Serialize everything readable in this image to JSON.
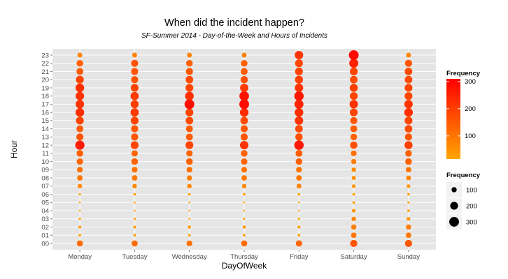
{
  "chart_data": {
    "type": "scatter",
    "title": "When did the incident happen?",
    "subtitle": "SF-Summer 2014 - Day-of-the-Week and Hours of Incidents",
    "xlabel": "DayOfWeek",
    "ylabel": "Hour",
    "categories": [
      "Monday",
      "Tuesday",
      "Wednesday",
      "Thursday",
      "Friday",
      "Saturday",
      "Sunday"
    ],
    "hours": [
      "00",
      "01",
      "02",
      "03",
      "04",
      "05",
      "06",
      "07",
      "08",
      "09",
      "10",
      "11",
      "12",
      "13",
      "14",
      "15",
      "16",
      "17",
      "18",
      "19",
      "20",
      "21",
      "22",
      "23"
    ],
    "size_range": [
      30,
      320
    ],
    "color_low": "#ffa500",
    "color_high": "#ff0000",
    "background": "#e5e5e5",
    "grid": true,
    "series": [
      {
        "category": "Monday",
        "values": [
          130,
          40,
          45,
          35,
          30,
          30,
          35,
          80,
          110,
          120,
          140,
          150,
          270,
          170,
          160,
          200,
          240,
          230,
          230,
          240,
          200,
          160,
          150,
          90
        ]
      },
      {
        "category": "Tuesday",
        "values": [
          130,
          40,
          45,
          35,
          30,
          30,
          40,
          80,
          110,
          120,
          150,
          140,
          200,
          170,
          170,
          200,
          220,
          210,
          220,
          200,
          170,
          170,
          170,
          90
        ]
      },
      {
        "category": "Wednesday",
        "values": [
          120,
          40,
          50,
          30,
          30,
          30,
          40,
          80,
          100,
          120,
          150,
          140,
          200,
          160,
          160,
          190,
          200,
          300,
          240,
          200,
          190,
          170,
          150,
          90
        ]
      },
      {
        "category": "Thursday",
        "values": [
          130,
          40,
          50,
          35,
          30,
          30,
          40,
          80,
          110,
          120,
          140,
          150,
          230,
          170,
          170,
          190,
          240,
          300,
          290,
          220,
          180,
          160,
          150,
          90
        ]
      },
      {
        "category": "Friday",
        "values": [
          140,
          40,
          45,
          35,
          30,
          30,
          40,
          90,
          110,
          120,
          150,
          160,
          280,
          180,
          190,
          230,
          240,
          260,
          280,
          230,
          210,
          200,
          200,
          230
        ]
      },
      {
        "category": "Saturday",
        "values": [
          170,
          110,
          100,
          80,
          60,
          40,
          40,
          60,
          70,
          80,
          100,
          120,
          180,
          150,
          160,
          170,
          200,
          230,
          200,
          210,
          190,
          200,
          260,
          300
        ]
      },
      {
        "category": "Sunday",
        "values": [
          170,
          110,
          100,
          60,
          40,
          35,
          40,
          60,
          90,
          110,
          150,
          150,
          210,
          170,
          190,
          200,
          240,
          230,
          200,
          200,
          190,
          190,
          170,
          90
        ]
      }
    ],
    "legend": {
      "placement": "right",
      "color_title": "Frequency",
      "color_breaks": [
        100,
        200,
        300
      ],
      "size_title": "Frequency",
      "size_breaks": [
        100,
        200,
        300
      ]
    }
  }
}
